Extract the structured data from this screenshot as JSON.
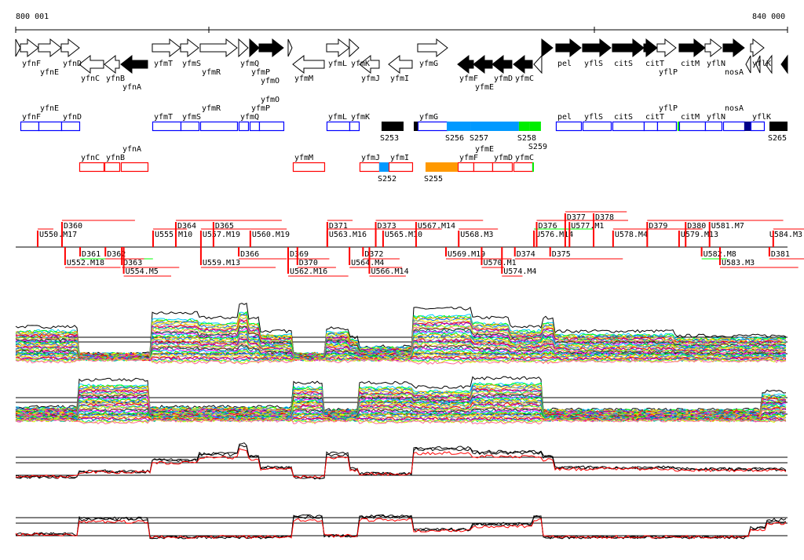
{
  "ruler": {
    "start_label": "800 001",
    "end_label": "840 000",
    "start_bp": 800001,
    "end_bp": 840000
  },
  "colors": {
    "forward_box": "#0000ff",
    "reverse_box": "#ff0000",
    "gene_fill": "#000000",
    "tiling": "#ff0000",
    "tiling_alt": "#00ff00"
  },
  "genes": [
    {
      "name": "",
      "start": 800001,
      "end": 800244,
      "strand": "+",
      "filled": false
    },
    {
      "name": "yfnF",
      "start": 800244,
      "end": 801180,
      "strand": "+",
      "filled": false
    },
    {
      "name": "yfnE",
      "start": 801180,
      "end": 802360,
      "strand": "+",
      "filled": false
    },
    {
      "name": "yfnD",
      "start": 802360,
      "end": 803296,
      "strand": "+",
      "filled": false
    },
    {
      "name": "yfnC",
      "start": 803296,
      "end": 804557,
      "strand": "-",
      "filled": false
    },
    {
      "name": "yfnB",
      "start": 804598,
      "end": 805371,
      "strand": "-",
      "filled": false
    },
    {
      "name": "yfnA",
      "start": 805452,
      "end": 806836,
      "strand": "-",
      "filled": true
    },
    {
      "name": "yfmT",
      "start": 807080,
      "end": 808545,
      "strand": "+",
      "filled": false
    },
    {
      "name": "yfmS",
      "start": 808545,
      "end": 809481,
      "strand": "+",
      "filled": false
    },
    {
      "name": "yfmR",
      "start": 809562,
      "end": 811475,
      "strand": "+",
      "filled": false
    },
    {
      "name": "yfmQ",
      "start": 811556,
      "end": 812044,
      "strand": "+",
      "filled": false
    },
    {
      "name": "yfmP",
      "start": 812126,
      "end": 812614,
      "strand": "+",
      "filled": true
    },
    {
      "name": "yfmO",
      "start": 812614,
      "end": 813875,
      "strand": "+",
      "filled": true
    },
    {
      "name": "",
      "start": 814119,
      "end": 814323,
      "strand": "+",
      "filled": false
    },
    {
      "name": "yfmM",
      "start": 814364,
      "end": 815991,
      "strand": "-",
      "filled": false
    },
    {
      "name": "yfmL",
      "start": 816113,
      "end": 817293,
      "strand": "+",
      "filled": false
    },
    {
      "name": "yfmK",
      "start": 817293,
      "end": 817782,
      "strand": "+",
      "filled": false
    },
    {
      "name": "yfmJ",
      "start": 817822,
      "end": 818839,
      "strand": "-",
      "filled": false
    },
    {
      "name": "yfmI",
      "start": 819328,
      "end": 820548,
      "strand": "-",
      "filled": false
    },
    {
      "name": "yfmG",
      "start": 820833,
      "end": 822380,
      "strand": "+",
      "filled": false
    },
    {
      "name": "yfmF",
      "start": 822908,
      "end": 823722,
      "strand": "-",
      "filled": true
    },
    {
      "name": "yfmE",
      "start": 823722,
      "end": 824699,
      "strand": "-",
      "filled": true
    },
    {
      "name": "yfmD",
      "start": 824699,
      "end": 825716,
      "strand": "-",
      "filled": true
    },
    {
      "name": "yfmC",
      "start": 825797,
      "end": 826774,
      "strand": "-",
      "filled": true
    },
    {
      "name": "",
      "start": 826855,
      "end": 827262,
      "strand": "-",
      "filled": false
    },
    {
      "name": "",
      "start": 827262,
      "end": 827832,
      "strand": "+",
      "filled": true
    },
    {
      "name": "pel",
      "start": 827995,
      "end": 829297,
      "strand": "+",
      "filled": true
    },
    {
      "name": "yflS",
      "start": 829378,
      "end": 830843,
      "strand": "+",
      "filled": true
    },
    {
      "name": "citS",
      "start": 830924,
      "end": 832552,
      "strand": "+",
      "filled": true
    },
    {
      "name": "citT",
      "start": 832552,
      "end": 833244,
      "strand": "+",
      "filled": true
    },
    {
      "name": "yflP",
      "start": 833244,
      "end": 834220,
      "strand": "+",
      "filled": false
    },
    {
      "name": "citM",
      "start": 834383,
      "end": 835726,
      "strand": "+",
      "filled": true
    },
    {
      "name": "yflN",
      "start": 835726,
      "end": 836580,
      "strand": "+",
      "filled": false
    },
    {
      "name": "nosA",
      "start": 836662,
      "end": 837760,
      "strand": "+",
      "filled": true
    },
    {
      "name": "yflK",
      "start": 838086,
      "end": 838778,
      "strand": "+",
      "filled": false
    },
    {
      "name": "",
      "start": 837842,
      "end": 838086,
      "strand": "-",
      "filled": false
    },
    {
      "name": "",
      "start": 838371,
      "end": 838574,
      "strand": "-",
      "filled": false
    },
    {
      "name": "",
      "start": 838859,
      "end": 839184,
      "strand": "-",
      "filled": false
    },
    {
      "name": "",
      "start": 839673,
      "end": 840000,
      "strand": "-",
      "filled": true
    }
  ],
  "segments": [
    {
      "name": "S253",
      "start": 818961,
      "end": 820101,
      "track": "+",
      "color": "#000000"
    },
    {
      "name": "",
      "start": 820630,
      "end": 820833,
      "track": "+",
      "color": "#000000"
    },
    {
      "name": "S256",
      "start": 822340,
      "end": 823600,
      "track": "+",
      "color": "#0099ff"
    },
    {
      "name": "S257",
      "start": 823600,
      "end": 826080,
      "track": "+",
      "color": "#0099ff"
    },
    {
      "name": "S258",
      "start": 826080,
      "end": 826650,
      "track": "+",
      "color": "#00ee00"
    },
    {
      "name": "S259",
      "start": 826650,
      "end": 827220,
      "track": "+",
      "color": "#00ee00"
    },
    {
      "name": "",
      "start": 834300,
      "end": 834383,
      "track": "+",
      "color": "#00ee00"
    },
    {
      "name": "",
      "start": 837760,
      "end": 838086,
      "track": "+",
      "color": "#000088"
    },
    {
      "name": "S265",
      "start": 839064,
      "end": 840000,
      "track": "+",
      "color": "#000000"
    },
    {
      "name": "S252",
      "start": 818839,
      "end": 819328,
      "track": "-",
      "color": "#0099ff"
    },
    {
      "name": "S255",
      "start": 821240,
      "end": 822908,
      "track": "-",
      "color": "#ff9900"
    },
    {
      "name": "",
      "start": 826774,
      "end": 826855,
      "track": "-",
      "color": "#00ee00"
    }
  ],
  "tiling": {
    "above": [
      {
        "label": "U550.M17",
        "pos": 801140
      },
      {
        "label": "U555.M10",
        "pos": 807120
      },
      {
        "label": "U557.M19",
        "pos": 809600
      },
      {
        "label": "U560.M19",
        "pos": 812160
      },
      {
        "label": "U563.M16",
        "pos": 816150
      },
      {
        "label": "U565.M10",
        "pos": 819040
      },
      {
        "label": "U567.M14",
        "pos": 820750
      },
      {
        "label": "U568.M3",
        "pos": 822960
      },
      {
        "label": "U576.M14",
        "pos": 826860
      },
      {
        "label": "U577.M1",
        "pos": 828700
      },
      {
        "label": "U578.M4",
        "pos": 830960
      },
      {
        "label": "U579.M13",
        "pos": 834380
      },
      {
        "label": "U581.M7",
        "pos": 835960
      },
      {
        "label": "U584.M3",
        "pos": 839260
      }
    ],
    "above2": [
      {
        "label": "D360",
        "pos": 802400
      },
      {
        "label": "D364",
        "pos": 808300
      },
      {
        "label": "D365",
        "pos": 810250
      },
      {
        "label": "D371",
        "pos": 816150
      },
      {
        "label": "D373",
        "pos": 818660
      },
      {
        "label": "D376",
        "pos": 827000
      },
      {
        "label": "D377",
        "pos": 828480
      },
      {
        "label": "D378",
        "pos": 829950
      },
      {
        "label": "D379",
        "pos": 832730
      },
      {
        "label": "D380",
        "pos": 834720
      }
    ],
    "below": [
      {
        "label": "D361",
        "pos": 803340
      },
      {
        "label": "D362",
        "pos": 804650
      },
      {
        "label": "D363",
        "pos": 805500
      },
      {
        "label": "D366",
        "pos": 811560
      },
      {
        "label": "D369",
        "pos": 814120
      },
      {
        "label": "D370",
        "pos": 814600
      },
      {
        "label": "D372",
        "pos": 818000
      },
      {
        "label": "D374",
        "pos": 825870
      },
      {
        "label": "D375",
        "pos": 827700
      },
      {
        "label": "D381",
        "pos": 839060
      }
    ],
    "below2": [
      {
        "label": "U552.M18",
        "pos": 802560
      },
      {
        "label": "U554.M5",
        "pos": 805600
      },
      {
        "label": "U559.M13",
        "pos": 809600
      },
      {
        "label": "U562.M16",
        "pos": 814120
      },
      {
        "label": "U564.M4",
        "pos": 817300
      },
      {
        "label": "U566.M14",
        "pos": 818330
      },
      {
        "label": "U569.M19",
        "pos": 822300
      },
      {
        "label": "U570.M1",
        "pos": 824150
      },
      {
        "label": "U574.M4",
        "pos": 825200
      },
      {
        "label": "U582.M8",
        "pos": 835550
      },
      {
        "label": "U583.M3",
        "pos": 836500
      }
    ]
  }
}
